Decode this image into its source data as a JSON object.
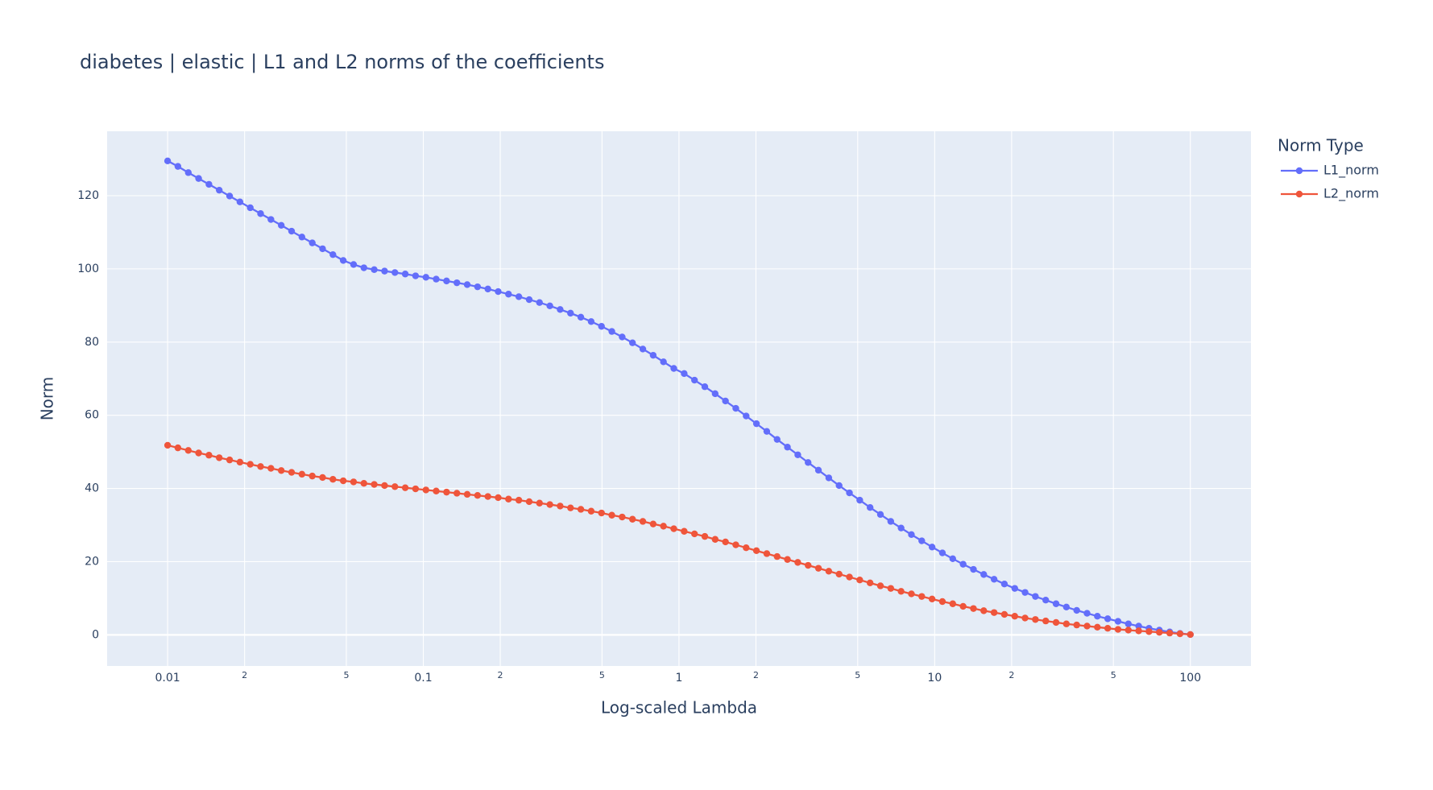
{
  "chart_data": {
    "type": "line",
    "title": "diabetes | elastic | L1 and L2 norms of the coefficients",
    "x_label": "Log-scaled Lambda",
    "y_label": "Norm",
    "legend_title": "Norm Type",
    "legend_position": "outside-top-right",
    "x_log": true,
    "grid": true,
    "xlim": [
      0.0058,
      172.6
    ],
    "ylim": [
      -8.5,
      137.6
    ],
    "xticks": [
      0.01,
      {
        "value": 0.02,
        "label": "2"
      },
      {
        "value": 0.05,
        "label": "5"
      },
      0.1,
      {
        "value": 0.2,
        "label": "2"
      },
      {
        "value": 0.5,
        "label": "5"
      },
      1,
      {
        "value": 2,
        "label": "2"
      },
      {
        "value": 5,
        "label": "5"
      },
      10,
      {
        "value": 20,
        "label": "2"
      },
      {
        "value": 50,
        "label": "5"
      },
      100
    ],
    "yticks": [
      0,
      20,
      40,
      60,
      80,
      100,
      120
    ],
    "x": [
      0.01,
      0.01097,
      0.01205,
      0.01322,
      0.01451,
      0.01592,
      0.01748,
      0.01918,
      0.02105,
      0.0231,
      0.02535,
      0.02783,
      0.03054,
      0.03352,
      0.03679,
      0.04037,
      0.04431,
      0.04863,
      0.05337,
      0.05857,
      0.06428,
      0.07055,
      0.07743,
      0.08498,
      0.09326,
      0.1024,
      0.1123,
      0.1233,
      0.1353,
      0.1485,
      0.163,
      0.1789,
      0.1963,
      0.2154,
      0.2364,
      0.2595,
      0.2848,
      0.3126,
      0.343,
      0.3765,
      0.4132,
      0.4535,
      0.4977,
      0.5462,
      0.5995,
      0.6579,
      0.7221,
      0.7925,
      0.8697,
      0.9545,
      1.048,
      1.15,
      1.262,
      1.385,
      1.52,
      1.668,
      1.831,
      2.009,
      2.205,
      2.42,
      2.656,
      2.915,
      3.199,
      3.511,
      3.854,
      4.229,
      4.642,
      5.094,
      5.591,
      6.136,
      6.734,
      7.391,
      8.111,
      8.902,
      9.77,
      10.72,
      11.77,
      12.92,
      14.18,
      15.56,
      17.08,
      18.74,
      20.57,
      22.57,
      24.77,
      27.19,
      29.84,
      32.75,
      35.94,
      39.45,
      43.29,
      47.51,
      52.14,
      57.22,
      62.8,
      68.92,
      75.64,
      83.02,
      91.11,
      100
    ],
    "series": [
      {
        "name": "L1_norm",
        "color": "#636efa",
        "values": [
          129.5,
          128.0,
          126.3,
          124.7,
          123.1,
          121.5,
          119.9,
          118.3,
          116.7,
          115.1,
          113.5,
          111.9,
          110.3,
          108.7,
          107.1,
          105.5,
          103.9,
          102.3,
          101.2,
          100.3,
          99.8,
          99.4,
          99.0,
          98.6,
          98.1,
          97.7,
          97.2,
          96.7,
          96.2,
          95.7,
          95.1,
          94.5,
          93.8,
          93.1,
          92.4,
          91.6,
          90.8,
          89.9,
          88.9,
          87.9,
          86.8,
          85.6,
          84.3,
          82.9,
          81.4,
          79.8,
          78.1,
          76.4,
          74.6,
          72.8,
          71.4,
          69.6,
          67.8,
          65.9,
          63.9,
          61.9,
          59.8,
          57.7,
          55.6,
          53.4,
          51.3,
          49.2,
          47.1,
          45.0,
          42.9,
          40.8,
          38.8,
          36.8,
          34.8,
          32.9,
          31.0,
          29.2,
          27.4,
          25.7,
          24.0,
          22.4,
          20.8,
          19.3,
          17.9,
          16.5,
          15.2,
          13.9,
          12.7,
          11.6,
          10.5,
          9.5,
          8.5,
          7.6,
          6.7,
          5.9,
          5.1,
          4.4,
          3.7,
          3.0,
          2.4,
          1.8,
          1.3,
          0.8,
          0.4,
          0.1
        ]
      },
      {
        "name": "L2_norm",
        "color": "#EF553B",
        "values": [
          51.8,
          51.1,
          50.4,
          49.7,
          49.1,
          48.4,
          47.8,
          47.2,
          46.6,
          46.0,
          45.5,
          44.9,
          44.4,
          43.9,
          43.4,
          43.0,
          42.5,
          42.1,
          41.8,
          41.4,
          41.1,
          40.8,
          40.5,
          40.2,
          39.9,
          39.6,
          39.3,
          39.0,
          38.7,
          38.4,
          38.1,
          37.8,
          37.5,
          37.1,
          36.8,
          36.4,
          36.0,
          35.6,
          35.2,
          34.7,
          34.3,
          33.8,
          33.3,
          32.7,
          32.2,
          31.6,
          31.0,
          30.3,
          29.7,
          29.0,
          28.3,
          27.6,
          26.9,
          26.1,
          25.4,
          24.6,
          23.8,
          23.0,
          22.2,
          21.4,
          20.6,
          19.8,
          19.0,
          18.2,
          17.4,
          16.6,
          15.8,
          15.0,
          14.2,
          13.4,
          12.7,
          11.9,
          11.2,
          10.5,
          9.8,
          9.1,
          8.5,
          7.8,
          7.2,
          6.6,
          6.1,
          5.6,
          5.1,
          4.6,
          4.2,
          3.8,
          3.4,
          3.0,
          2.7,
          2.4,
          2.1,
          1.8,
          1.5,
          1.3,
          1.1,
          0.9,
          0.7,
          0.5,
          0.3,
          0.1
        ]
      }
    ]
  }
}
